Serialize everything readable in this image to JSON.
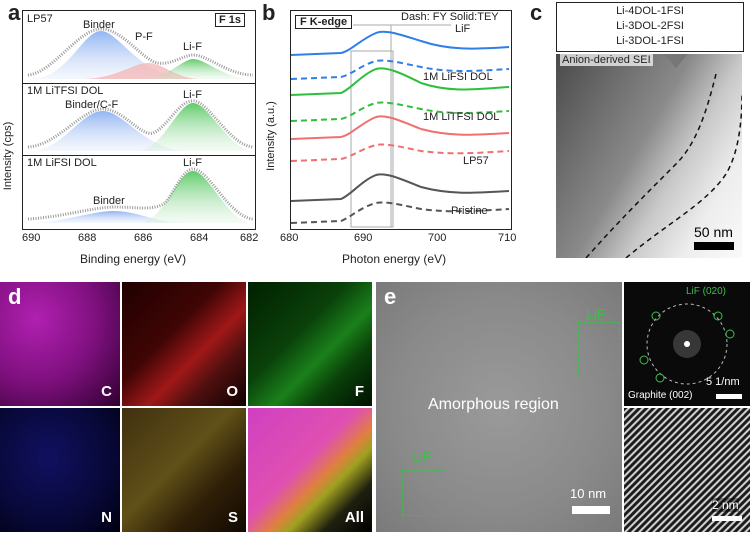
{
  "panel_a": {
    "letter": "a",
    "xlabel": "Binding energy (eV)",
    "ylabel": "Intensity (cps)",
    "ticks": [
      "690",
      "688",
      "686",
      "684",
      "682"
    ],
    "sub1": {
      "title": "LP57",
      "tag": "F 1s",
      "binder": "Binder",
      "pf": "P-F",
      "lif": "Li-F"
    },
    "sub2": {
      "title": "1M LiTFSI DOL",
      "binder": "Binder/C-F",
      "lif": "Li-F"
    },
    "sub3": {
      "title": "1M LiFSI DOL",
      "binder": "Binder",
      "lif": "Li-F"
    },
    "colors": {
      "binder": "#5b8fe6",
      "lif": "#3bbf4a",
      "pf": "#e85050",
      "fit": "#9a9a9a"
    }
  },
  "panel_b": {
    "letter": "b",
    "xlabel": "Photon energy (eV)",
    "ylabel": "Intensity (a.u.)",
    "title": "F K-edge",
    "legend": "Dash: FY Solid:TEY",
    "lif": "LiF",
    "ticks": [
      "680",
      "690",
      "700",
      "710"
    ],
    "labels": [
      "1M LiFSI DOL",
      "1M LiTFSI DOL",
      "LP57",
      "Pristine"
    ],
    "colors": [
      "#2f7fe8",
      "#2fbf3f",
      "#f07070",
      "#555555"
    ]
  },
  "panel_c": {
    "letter": "c",
    "box_lines": [
      "Li-4DOL-1FSI",
      "Li-3DOL-2FSI",
      "Li-3DOL-1FSI"
    ],
    "sei_label": "Anion-derived SEI",
    "scale": "50 nm"
  },
  "panel_d": {
    "letter": "d",
    "maps": [
      {
        "label": "C",
        "color": "#c030c0"
      },
      {
        "label": "O",
        "color": "#c02020"
      },
      {
        "label": "F",
        "color": "#20a020"
      },
      {
        "label": "N",
        "color": "#2020a0"
      },
      {
        "label": "S",
        "color": "#c0a020"
      },
      {
        "label": "All",
        "color": "#d040a0"
      }
    ]
  },
  "panel_e": {
    "letter": "e",
    "lif_top": "LiF",
    "lif_bottom": "LiF",
    "amorphous": "Amorphous region",
    "scale": "10 nm",
    "fft_lif": "LiF (020)",
    "fft_scale": "5 1/nm",
    "graphite": "Graphite (002)",
    "lattice_scale": "2 nm"
  }
}
